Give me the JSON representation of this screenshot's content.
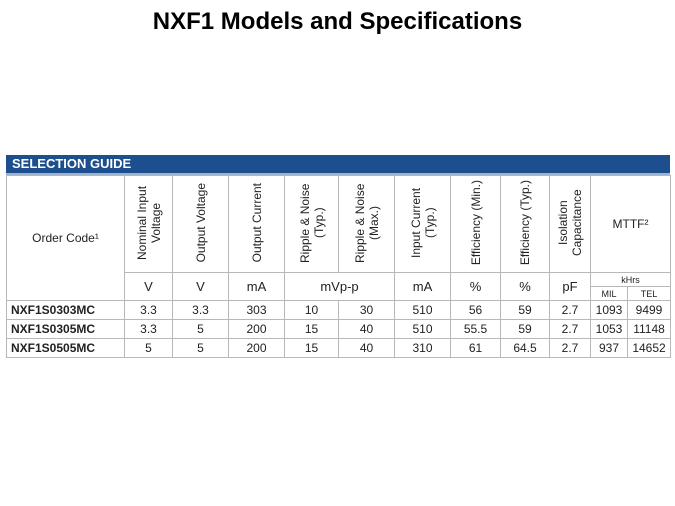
{
  "title": "NXF1 Models and Specifications",
  "table": {
    "caption": "SELECTION GUIDE",
    "headers": [
      "Order Code¹",
      "Nominal Input Voltage",
      "Output Voltage",
      "Output Current",
      "Ripple & Noise (Typ.)",
      "Ripple & Noise (Max.)",
      "Input Current (Typ.)",
      "Efficiency (Min.)",
      "Efficiency (Typ.)",
      "Isolation Capacitance",
      "MTTF²"
    ],
    "units": [
      "V",
      "V",
      "mA",
      "mVp-p",
      "mA",
      "%",
      "%",
      "pF",
      "kHrs"
    ],
    "subunits": [
      "MIL",
      "TEL"
    ],
    "rows": [
      [
        "NXF1S0303MC",
        3.3,
        3.3,
        303,
        10,
        30,
        510,
        56,
        59,
        2.7,
        1093,
        9499
      ],
      [
        "NXF1S0305MC",
        3.3,
        5,
        200,
        15,
        40,
        510,
        55.5,
        59,
        2.7,
        1053,
        11148
      ],
      [
        "NXF1S0505MC",
        5,
        5,
        200,
        15,
        40,
        310,
        61,
        64.5,
        2.7,
        937,
        14652
      ]
    ]
  }
}
